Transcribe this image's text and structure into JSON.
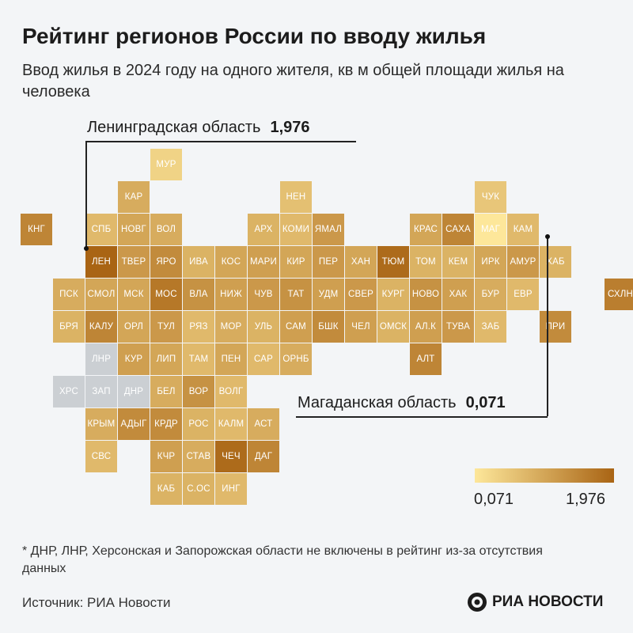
{
  "header": {
    "title": "Рейтинг регионов России по вводу жилья",
    "subtitle": "Ввод жилья в 2024 году на одного жителя, кв м общей площади жилья на человека"
  },
  "colors": {
    "low": "#fde79a",
    "high": "#a96414",
    "nodata": "#cbcfd3"
  },
  "callouts": {
    "max": {
      "label": "Ленинградская область",
      "value": "1,976"
    },
    "min": {
      "label": "Магаданская область",
      "value": "0,071"
    }
  },
  "legend": {
    "min_label": "0,071",
    "max_label": "1,976"
  },
  "footnote": "* ДНР, ЛНР, Херсонская и Запорожская области не включены в рейтинг из-за отсутствия данных",
  "source": "Источник: РИА Новости",
  "logo": {
    "text": "РИА НОВОСТИ"
  },
  "regions": [
    {
      "code": "МУР",
      "row": 0,
      "col": 4,
      "shade": 0.15
    },
    {
      "code": "КАР",
      "row": 1,
      "col": 3,
      "shade": 0.45
    },
    {
      "code": "НЕН",
      "row": 1,
      "col": 8,
      "shade": 0.3
    },
    {
      "code": "ЧУК",
      "row": 1,
      "col": 14,
      "shade": 0.25
    },
    {
      "code": "КНГ",
      "row": 2,
      "col": 0,
      "shade": 0.75
    },
    {
      "code": "СПБ",
      "row": 2,
      "col": 2,
      "shade": 0.35
    },
    {
      "code": "НОВГ",
      "row": 2,
      "col": 3,
      "shade": 0.5
    },
    {
      "code": "ВОЛ",
      "row": 2,
      "col": 4,
      "shade": 0.45
    },
    {
      "code": "АРХ",
      "row": 2,
      "col": 7,
      "shade": 0.4
    },
    {
      "code": "КОМИ",
      "row": 2,
      "col": 8,
      "shade": 0.35
    },
    {
      "code": "ЯМАЛ",
      "row": 2,
      "col": 9,
      "shade": 0.6
    },
    {
      "code": "КРАС",
      "row": 2,
      "col": 12,
      "shade": 0.5
    },
    {
      "code": "САХА",
      "row": 2,
      "col": 13,
      "shade": 0.75
    },
    {
      "code": "МАГ",
      "row": 2,
      "col": 14,
      "shade": 0.0
    },
    {
      "code": "КАМ",
      "row": 2,
      "col": 15,
      "shade": 0.35
    },
    {
      "code": "ЛЕН",
      "row": 3,
      "col": 2,
      "shade": 1.0
    },
    {
      "code": "ТВЕР",
      "row": 3,
      "col": 3,
      "shade": 0.6
    },
    {
      "code": "ЯРО",
      "row": 3,
      "col": 4,
      "shade": 0.7
    },
    {
      "code": "ИВА",
      "row": 3,
      "col": 5,
      "shade": 0.4
    },
    {
      "code": "КОС",
      "row": 3,
      "col": 6,
      "shade": 0.5
    },
    {
      "code": "МАРИ",
      "row": 3,
      "col": 7,
      "shade": 0.55
    },
    {
      "code": "КИР",
      "row": 3,
      "col": 8,
      "shade": 0.5
    },
    {
      "code": "ПЕР",
      "row": 3,
      "col": 9,
      "shade": 0.6
    },
    {
      "code": "ХАН",
      "row": 3,
      "col": 10,
      "shade": 0.5
    },
    {
      "code": "ТЮМ",
      "row": 3,
      "col": 11,
      "shade": 0.95
    },
    {
      "code": "ТОМ",
      "row": 3,
      "col": 12,
      "shade": 0.4
    },
    {
      "code": "КЕМ",
      "row": 3,
      "col": 13,
      "shade": 0.4
    },
    {
      "code": "ИРК",
      "row": 3,
      "col": 14,
      "shade": 0.5
    },
    {
      "code": "АМУР",
      "row": 3,
      "col": 15,
      "shade": 0.6
    },
    {
      "code": "ХАБ",
      "row": 3,
      "col": 16,
      "shade": 0.4
    },
    {
      "code": "ПСК",
      "row": 4,
      "col": 1,
      "shade": 0.45
    },
    {
      "code": "СМОЛ",
      "row": 4,
      "col": 2,
      "shade": 0.5
    },
    {
      "code": "МСК",
      "row": 4,
      "col": 3,
      "shade": 0.5
    },
    {
      "code": "МОС",
      "row": 4,
      "col": 4,
      "shade": 0.85
    },
    {
      "code": "ВЛА",
      "row": 4,
      "col": 5,
      "shade": 0.65
    },
    {
      "code": "НИЖ",
      "row": 4,
      "col": 6,
      "shade": 0.55
    },
    {
      "code": "ЧУВ",
      "row": 4,
      "col": 7,
      "shade": 0.6
    },
    {
      "code": "ТАТ",
      "row": 4,
      "col": 8,
      "shade": 0.65
    },
    {
      "code": "УДМ",
      "row": 4,
      "col": 9,
      "shade": 0.55
    },
    {
      "code": "СВЕР",
      "row": 4,
      "col": 10,
      "shade": 0.6
    },
    {
      "code": "КУРГ",
      "row": 4,
      "col": 11,
      "shade": 0.4
    },
    {
      "code": "НОВО",
      "row": 4,
      "col": 12,
      "shade": 0.65
    },
    {
      "code": "ХАК",
      "row": 4,
      "col": 13,
      "shade": 0.55
    },
    {
      "code": "БУР",
      "row": 4,
      "col": 14,
      "shade": 0.45
    },
    {
      "code": "ЕВР",
      "row": 4,
      "col": 15,
      "shade": 0.35
    },
    {
      "code": "СХЛН",
      "row": 4,
      "col": 18,
      "shade": 0.8
    },
    {
      "code": "БРЯ",
      "row": 5,
      "col": 1,
      "shade": 0.4
    },
    {
      "code": "КАЛУ",
      "row": 5,
      "col": 2,
      "shade": 0.75
    },
    {
      "code": "ОРЛ",
      "row": 5,
      "col": 3,
      "shade": 0.5
    },
    {
      "code": "ТУЛ",
      "row": 5,
      "col": 4,
      "shade": 0.6
    },
    {
      "code": "РЯЗ",
      "row": 5,
      "col": 5,
      "shade": 0.35
    },
    {
      "code": "МОР",
      "row": 5,
      "col": 6,
      "shade": 0.45
    },
    {
      "code": "УЛЬ",
      "row": 5,
      "col": 7,
      "shade": 0.4
    },
    {
      "code": "САМ",
      "row": 5,
      "col": 8,
      "shade": 0.55
    },
    {
      "code": "БШК",
      "row": 5,
      "col": 9,
      "shade": 0.7
    },
    {
      "code": "ЧЕЛ",
      "row": 5,
      "col": 10,
      "shade": 0.55
    },
    {
      "code": "ОМСК",
      "row": 5,
      "col": 11,
      "shade": 0.4
    },
    {
      "code": "АЛ.К",
      "row": 5,
      "col": 12,
      "shade": 0.55
    },
    {
      "code": "ТУВА",
      "row": 5,
      "col": 13,
      "shade": 0.6
    },
    {
      "code": "ЗАБ",
      "row": 5,
      "col": 14,
      "shade": 0.35
    },
    {
      "code": "ПРИ",
      "row": 5,
      "col": 16,
      "shade": 0.7
    },
    {
      "code": "ЛНР",
      "row": 6,
      "col": 2,
      "shade": null
    },
    {
      "code": "КУР",
      "row": 6,
      "col": 3,
      "shade": 0.55
    },
    {
      "code": "ЛИП",
      "row": 6,
      "col": 4,
      "shade": 0.5
    },
    {
      "code": "ТАМ",
      "row": 6,
      "col": 5,
      "shade": 0.35
    },
    {
      "code": "ПЕН",
      "row": 6,
      "col": 6,
      "shade": 0.5
    },
    {
      "code": "САР",
      "row": 6,
      "col": 7,
      "shade": 0.35
    },
    {
      "code": "ОРНБ",
      "row": 6,
      "col": 8,
      "shade": 0.45
    },
    {
      "code": "АЛТ",
      "row": 6,
      "col": 12,
      "shade": 0.75
    },
    {
      "code": "ХРС",
      "row": 7,
      "col": 1,
      "shade": null
    },
    {
      "code": "ЗАП",
      "row": 7,
      "col": 2,
      "shade": null
    },
    {
      "code": "ДНР",
      "row": 7,
      "col": 3,
      "shade": null
    },
    {
      "code": "БЕЛ",
      "row": 7,
      "col": 4,
      "shade": 0.45
    },
    {
      "code": "ВОР",
      "row": 7,
      "col": 5,
      "shade": 0.65
    },
    {
      "code": "ВОЛГ",
      "row": 7,
      "col": 6,
      "shade": 0.35
    },
    {
      "code": "КРЫМ",
      "row": 8,
      "col": 2,
      "shade": 0.45
    },
    {
      "code": "АДЫГ",
      "row": 8,
      "col": 3,
      "shade": 0.7
    },
    {
      "code": "КРДР",
      "row": 8,
      "col": 4,
      "shade": 0.7
    },
    {
      "code": "РОС",
      "row": 8,
      "col": 5,
      "shade": 0.4
    },
    {
      "code": "КАЛМ",
      "row": 8,
      "col": 6,
      "shade": 0.35
    },
    {
      "code": "АСТ",
      "row": 8,
      "col": 7,
      "shade": 0.45
    },
    {
      "code": "СВС",
      "row": 9,
      "col": 2,
      "shade": 0.35
    },
    {
      "code": "КЧР",
      "row": 9,
      "col": 4,
      "shade": 0.55
    },
    {
      "code": "СТАВ",
      "row": 9,
      "col": 5,
      "shade": 0.45
    },
    {
      "code": "ЧЕЧ",
      "row": 9,
      "col": 6,
      "shade": 0.95
    },
    {
      "code": "ДАГ",
      "row": 9,
      "col": 7,
      "shade": 0.75
    },
    {
      "code": "КАБ",
      "row": 10,
      "col": 4,
      "shade": 0.4
    },
    {
      "code": "С.ОС",
      "row": 10,
      "col": 5,
      "shade": 0.4
    },
    {
      "code": "ИНГ",
      "row": 10,
      "col": 6,
      "shade": 0.35
    }
  ]
}
